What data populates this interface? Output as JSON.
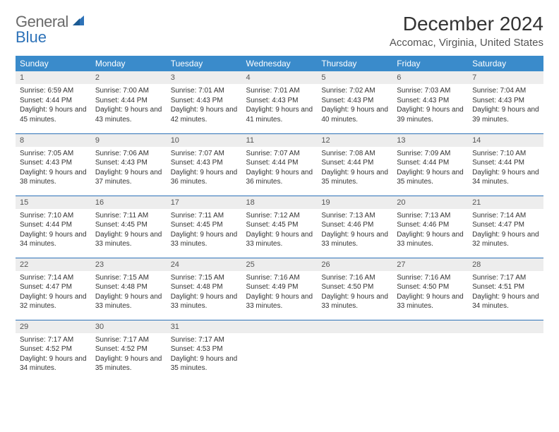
{
  "logo": {
    "text1": "General",
    "text2": "Blue",
    "color1": "#6a6a6a",
    "color2": "#2d72b8"
  },
  "title": "December 2024",
  "location": "Accomac, Virginia, United States",
  "colors": {
    "header_bg": "#3a8bcb",
    "header_text": "#ffffff",
    "daynum_bg": "#ededed",
    "border": "#2d72b8"
  },
  "weekdays": [
    "Sunday",
    "Monday",
    "Tuesday",
    "Wednesday",
    "Thursday",
    "Friday",
    "Saturday"
  ],
  "weeks": [
    [
      {
        "n": "1",
        "sr": "6:59 AM",
        "ss": "4:44 PM",
        "dl": "9 hours and 45 minutes."
      },
      {
        "n": "2",
        "sr": "7:00 AM",
        "ss": "4:44 PM",
        "dl": "9 hours and 43 minutes."
      },
      {
        "n": "3",
        "sr": "7:01 AM",
        "ss": "4:43 PM",
        "dl": "9 hours and 42 minutes."
      },
      {
        "n": "4",
        "sr": "7:01 AM",
        "ss": "4:43 PM",
        "dl": "9 hours and 41 minutes."
      },
      {
        "n": "5",
        "sr": "7:02 AM",
        "ss": "4:43 PM",
        "dl": "9 hours and 40 minutes."
      },
      {
        "n": "6",
        "sr": "7:03 AM",
        "ss": "4:43 PM",
        "dl": "9 hours and 39 minutes."
      },
      {
        "n": "7",
        "sr": "7:04 AM",
        "ss": "4:43 PM",
        "dl": "9 hours and 39 minutes."
      }
    ],
    [
      {
        "n": "8",
        "sr": "7:05 AM",
        "ss": "4:43 PM",
        "dl": "9 hours and 38 minutes."
      },
      {
        "n": "9",
        "sr": "7:06 AM",
        "ss": "4:43 PM",
        "dl": "9 hours and 37 minutes."
      },
      {
        "n": "10",
        "sr": "7:07 AM",
        "ss": "4:43 PM",
        "dl": "9 hours and 36 minutes."
      },
      {
        "n": "11",
        "sr": "7:07 AM",
        "ss": "4:44 PM",
        "dl": "9 hours and 36 minutes."
      },
      {
        "n": "12",
        "sr": "7:08 AM",
        "ss": "4:44 PM",
        "dl": "9 hours and 35 minutes."
      },
      {
        "n": "13",
        "sr": "7:09 AM",
        "ss": "4:44 PM",
        "dl": "9 hours and 35 minutes."
      },
      {
        "n": "14",
        "sr": "7:10 AM",
        "ss": "4:44 PM",
        "dl": "9 hours and 34 minutes."
      }
    ],
    [
      {
        "n": "15",
        "sr": "7:10 AM",
        "ss": "4:44 PM",
        "dl": "9 hours and 34 minutes."
      },
      {
        "n": "16",
        "sr": "7:11 AM",
        "ss": "4:45 PM",
        "dl": "9 hours and 33 minutes."
      },
      {
        "n": "17",
        "sr": "7:11 AM",
        "ss": "4:45 PM",
        "dl": "9 hours and 33 minutes."
      },
      {
        "n": "18",
        "sr": "7:12 AM",
        "ss": "4:45 PM",
        "dl": "9 hours and 33 minutes."
      },
      {
        "n": "19",
        "sr": "7:13 AM",
        "ss": "4:46 PM",
        "dl": "9 hours and 33 minutes."
      },
      {
        "n": "20",
        "sr": "7:13 AM",
        "ss": "4:46 PM",
        "dl": "9 hours and 33 minutes."
      },
      {
        "n": "21",
        "sr": "7:14 AM",
        "ss": "4:47 PM",
        "dl": "9 hours and 32 minutes."
      }
    ],
    [
      {
        "n": "22",
        "sr": "7:14 AM",
        "ss": "4:47 PM",
        "dl": "9 hours and 32 minutes."
      },
      {
        "n": "23",
        "sr": "7:15 AM",
        "ss": "4:48 PM",
        "dl": "9 hours and 33 minutes."
      },
      {
        "n": "24",
        "sr": "7:15 AM",
        "ss": "4:48 PM",
        "dl": "9 hours and 33 minutes."
      },
      {
        "n": "25",
        "sr": "7:16 AM",
        "ss": "4:49 PM",
        "dl": "9 hours and 33 minutes."
      },
      {
        "n": "26",
        "sr": "7:16 AM",
        "ss": "4:50 PM",
        "dl": "9 hours and 33 minutes."
      },
      {
        "n": "27",
        "sr": "7:16 AM",
        "ss": "4:50 PM",
        "dl": "9 hours and 33 minutes."
      },
      {
        "n": "28",
        "sr": "7:17 AM",
        "ss": "4:51 PM",
        "dl": "9 hours and 34 minutes."
      }
    ],
    [
      {
        "n": "29",
        "sr": "7:17 AM",
        "ss": "4:52 PM",
        "dl": "9 hours and 34 minutes."
      },
      {
        "n": "30",
        "sr": "7:17 AM",
        "ss": "4:52 PM",
        "dl": "9 hours and 35 minutes."
      },
      {
        "n": "31",
        "sr": "7:17 AM",
        "ss": "4:53 PM",
        "dl": "9 hours and 35 minutes."
      },
      null,
      null,
      null,
      null
    ]
  ],
  "labels": {
    "sunrise": "Sunrise:",
    "sunset": "Sunset:",
    "daylight": "Daylight:"
  }
}
